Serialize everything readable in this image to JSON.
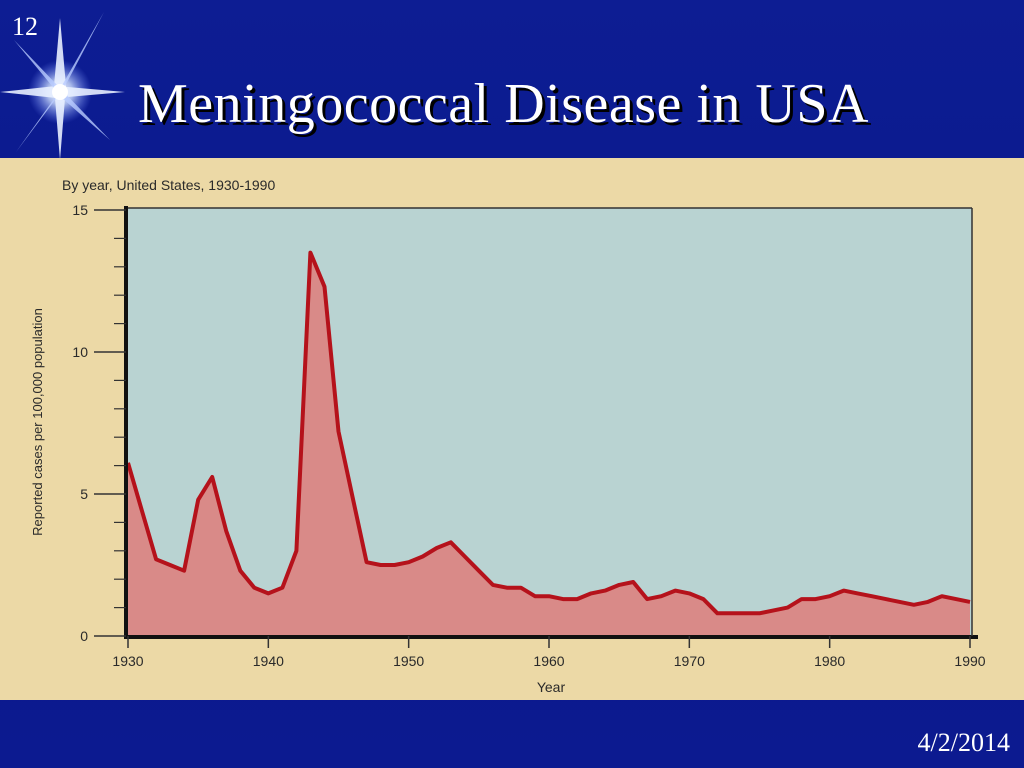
{
  "slide": {
    "number": "12",
    "title": "Meningococcal  Disease in USA",
    "date": "4/2/2014"
  },
  "colors": {
    "slide_bg": "#0a1a8c",
    "photo_bg": "#ecd9a6",
    "plot_bg": "#b9d3d2",
    "fill": "#d98a88",
    "line": "#b5121b"
  },
  "chart_data": {
    "type": "area",
    "subtitle": "By year, United States, 1930-1990",
    "xlabel": "Year",
    "ylabel": "Reported cases per 100,000 population",
    "xlim": [
      1930,
      1990
    ],
    "ylim": [
      0,
      15
    ],
    "xticks": [
      "1930",
      "1940",
      "1950",
      "1960",
      "1970",
      "1980",
      "1990"
    ],
    "yticks": [
      "0",
      "5",
      "10",
      "15"
    ],
    "grid": false,
    "series": [
      {
        "x": [
          1930,
          1931,
          1932,
          1933,
          1934,
          1935,
          1936,
          1937,
          1938,
          1939,
          1940,
          1941,
          1942,
          1943,
          1944,
          1945,
          1946,
          1947,
          1948,
          1949,
          1950,
          1951,
          1952,
          1953,
          1954,
          1955,
          1956,
          1957,
          1958,
          1959,
          1960,
          1961,
          1962,
          1963,
          1964,
          1965,
          1966,
          1967,
          1968,
          1969,
          1970,
          1971,
          1972,
          1973,
          1974,
          1975,
          1976,
          1977,
          1978,
          1979,
          1980,
          1981,
          1982,
          1983,
          1984,
          1985,
          1986,
          1987,
          1988,
          1989,
          1990
        ],
        "y": [
          6.1,
          4.4,
          2.7,
          2.5,
          2.3,
          4.8,
          5.6,
          3.7,
          2.3,
          1.7,
          1.5,
          1.7,
          3.0,
          13.5,
          12.3,
          7.2,
          4.9,
          2.6,
          2.5,
          2.5,
          2.6,
          2.8,
          3.1,
          3.3,
          2.8,
          2.3,
          1.8,
          1.7,
          1.7,
          1.4,
          1.4,
          1.3,
          1.3,
          1.5,
          1.6,
          1.8,
          1.9,
          1.3,
          1.4,
          1.6,
          1.5,
          1.3,
          0.8,
          0.8,
          0.8,
          0.8,
          0.9,
          1.0,
          1.3,
          1.3,
          1.4,
          1.6,
          1.5,
          1.4,
          1.3,
          1.2,
          1.1,
          1.2,
          1.4,
          1.3,
          1.2
        ]
      }
    ]
  }
}
